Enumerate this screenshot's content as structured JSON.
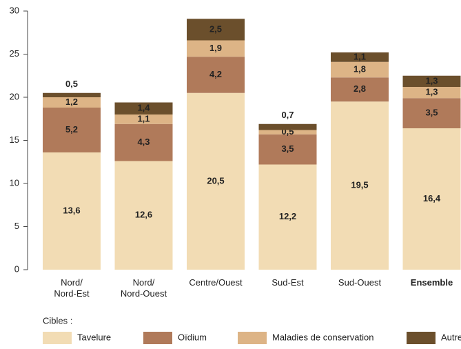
{
  "chart_data": {
    "type": "stacked_bar",
    "categories": [
      "Nord/\nNord-Est",
      "Nord/\nNord-Ouest",
      "Centre/Ouest",
      "Sud-Est",
      "Sud-Ouest",
      "Ensemble"
    ],
    "series": [
      {
        "name": "Tavelure",
        "color": "#f2dcb4",
        "values": [
          13.6,
          12.6,
          20.5,
          12.2,
          19.5,
          16.4
        ],
        "value_labels": [
          "13,6",
          "12,6",
          "20,5",
          "12,2",
          "19,5",
          "16,4"
        ]
      },
      {
        "name": "Oïdium",
        "color": "#b07a5a",
        "values": [
          5.2,
          4.3,
          4.2,
          3.5,
          2.8,
          3.5
        ],
        "value_labels": [
          "5,2",
          "4,3",
          "4,2",
          "3,5",
          "2,8",
          "3,5"
        ]
      },
      {
        "name": "Maladies de conservation",
        "color": "#ddb486",
        "values": [
          1.2,
          1.1,
          1.9,
          0.5,
          1.8,
          1.3
        ],
        "value_labels": [
          "1,2",
          "1,1",
          "1,9",
          "0,5",
          "1,8",
          "1,3"
        ]
      },
      {
        "name": "Autres",
        "color": "#6b4f2c",
        "values": [
          0.5,
          1.4,
          2.5,
          0.7,
          1.1,
          1.3
        ],
        "value_labels": [
          "0,5",
          "1,4",
          "2,5",
          "0,7",
          "1,1",
          "1,3"
        ]
      }
    ],
    "legend_title": "Cibles :",
    "ylim": [
      0,
      30
    ],
    "yticks": [
      0,
      5,
      10,
      15,
      20,
      25,
      30
    ],
    "grid": false
  }
}
